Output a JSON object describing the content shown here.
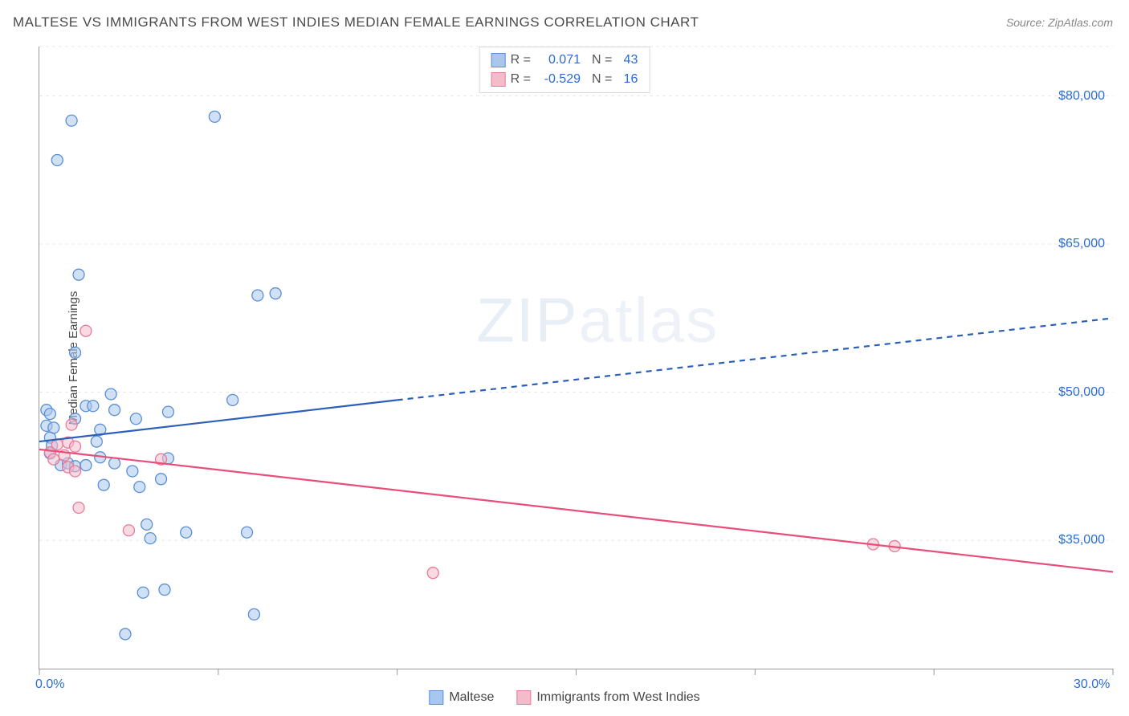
{
  "header": {
    "title": "MALTESE VS IMMIGRANTS FROM WEST INDIES MEDIAN FEMALE EARNINGS CORRELATION CHART",
    "source": "Source: ZipAtlas.com"
  },
  "watermark": {
    "bold": "ZIP",
    "light": "atlas"
  },
  "chart": {
    "type": "scatter",
    "ylabel": "Median Female Earnings",
    "xlim": [
      0,
      30
    ],
    "ylim": [
      22000,
      85000
    ],
    "background_color": "#ffffff",
    "grid_color": "#e7e7e7",
    "axis_color": "#999999",
    "xtick_positions": [
      0,
      5,
      10,
      15,
      20,
      25,
      30
    ],
    "xtick_labels_shown": {
      "0": "0.0%",
      "30": "30.0%"
    },
    "ytick_positions": [
      35000,
      50000,
      65000,
      80000
    ],
    "ytick_labels": [
      "$35,000",
      "$50,000",
      "$65,000",
      "$80,000"
    ],
    "marker_radius": 7,
    "marker_opacity": 0.55,
    "series": [
      {
        "name": "Maltese",
        "color_fill": "#a9c7ec",
        "color_stroke": "#5a8fd6",
        "trend_color": "#2b5fb8",
        "trend_width": 2.2,
        "R": "0.071",
        "N": "43",
        "trend": {
          "x1": 0,
          "y1": 45000,
          "x2_solid": 10,
          "y2_solid": 49200,
          "x2_dash": 30,
          "y2_dash": 57500
        },
        "points": [
          [
            0.2,
            48200
          ],
          [
            0.2,
            46600
          ],
          [
            0.3,
            47800
          ],
          [
            0.3,
            45400
          ],
          [
            0.3,
            43800
          ],
          [
            0.35,
            44600
          ],
          [
            0.6,
            42600
          ],
          [
            0.8,
            42800
          ],
          [
            0.5,
            73500
          ],
          [
            1.1,
            61900
          ],
          [
            1.0,
            54000
          ],
          [
            1.0,
            47300
          ],
          [
            1.0,
            42500
          ],
          [
            0.9,
            77500
          ],
          [
            1.3,
            48600
          ],
          [
            1.5,
            48600
          ],
          [
            1.6,
            45000
          ],
          [
            1.7,
            46200
          ],
          [
            1.7,
            43400
          ],
          [
            1.8,
            40600
          ],
          [
            2.0,
            49800
          ],
          [
            2.1,
            48200
          ],
          [
            2.1,
            42800
          ],
          [
            2.4,
            25500
          ],
          [
            2.6,
            42000
          ],
          [
            2.7,
            47300
          ],
          [
            2.8,
            40400
          ],
          [
            2.9,
            29700
          ],
          [
            3.1,
            35200
          ],
          [
            3.4,
            41200
          ],
          [
            3.5,
            30000
          ],
          [
            3.6,
            43300
          ],
          [
            3.6,
            48000
          ],
          [
            4.1,
            35800
          ],
          [
            4.9,
            77900
          ],
          [
            5.4,
            49200
          ],
          [
            5.8,
            35800
          ],
          [
            6.1,
            59800
          ],
          [
            6.6,
            60000
          ],
          [
            6.0,
            27500
          ],
          [
            3.0,
            36600
          ],
          [
            1.3,
            42600
          ],
          [
            0.4,
            46400
          ]
        ]
      },
      {
        "name": "Immigrants from West Indies",
        "color_fill": "#f4bccb",
        "color_stroke": "#e77a9a",
        "trend_color": "#e94e7b",
        "trend_width": 2.2,
        "R": "-0.529",
        "N": "16",
        "trend": {
          "x1": 0,
          "y1": 44200,
          "x2_solid": 30,
          "y2_solid": 31800,
          "x2_dash": 30,
          "y2_dash": 31800
        },
        "points": [
          [
            0.3,
            43900
          ],
          [
            0.4,
            43200
          ],
          [
            0.5,
            44700
          ],
          [
            0.7,
            43600
          ],
          [
            0.8,
            44900
          ],
          [
            0.8,
            42400
          ],
          [
            0.9,
            46700
          ],
          [
            1.0,
            44500
          ],
          [
            1.0,
            42000
          ],
          [
            1.1,
            38300
          ],
          [
            1.3,
            56200
          ],
          [
            2.5,
            36000
          ],
          [
            3.4,
            43200
          ],
          [
            11.0,
            31700
          ],
          [
            23.3,
            34600
          ],
          [
            23.9,
            34400
          ]
        ]
      }
    ]
  },
  "legend": {
    "series1_label": "Maltese",
    "series2_label": "Immigrants from West Indies"
  }
}
